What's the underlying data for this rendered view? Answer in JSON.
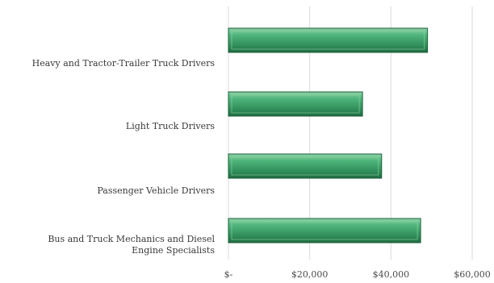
{
  "chart_data": {
    "type": "bar",
    "orientation": "horizontal",
    "categories": [
      "Heavy and Tractor-Trailer Truck Drivers",
      "Light Truck Drivers",
      "Passenger Vehicle Drivers",
      "Bus and Truck Mechanics and Diesel Engine Specialists"
    ],
    "category_lines": [
      [
        "Heavy and Tractor-Trailer Truck Drivers"
      ],
      [
        "Light Truck Drivers"
      ],
      [
        "Passenger Vehicle Drivers"
      ],
      [
        "Bus and Truck Mechanics and Diesel",
        "Engine Specialists"
      ]
    ],
    "values": [
      49000,
      33000,
      37700,
      47300
    ],
    "xlim": [
      0,
      60000
    ],
    "x_ticks": [
      0,
      20000,
      40000,
      60000
    ],
    "x_tick_labels": [
      "$-",
      "$20,000",
      "$40,000",
      "$60,000"
    ],
    "grid": "vertical",
    "bar_color": "#2e8b57",
    "title": "",
    "xlabel": "",
    "ylabel": ""
  }
}
